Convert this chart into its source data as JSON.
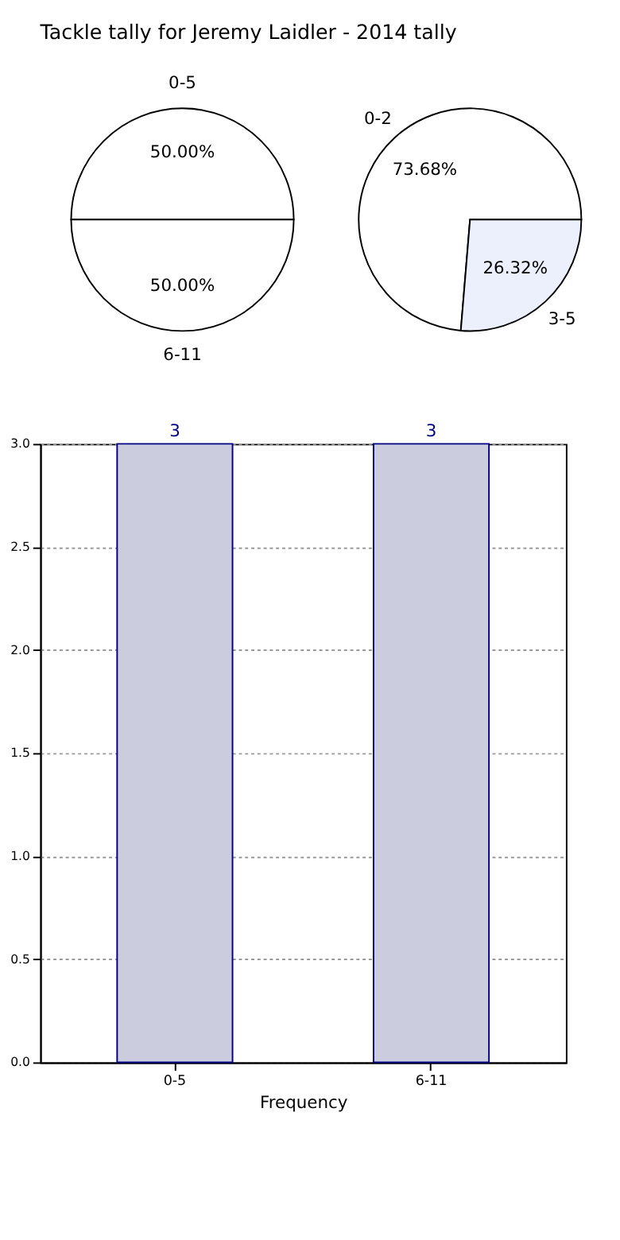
{
  "chart_data": [
    {
      "type": "pie",
      "title": "Tackle tally for Jeremy Laidler - 2014 tally",
      "categories": [
        "0-5",
        "6-11"
      ],
      "values": [
        50,
        50
      ],
      "colors": [
        "#ffffff",
        "#ffffff"
      ],
      "value_labels": [
        "50.00%",
        "50.00%"
      ]
    },
    {
      "type": "pie",
      "categories": [
        "0-2",
        "3-5"
      ],
      "values": [
        73.68,
        26.32
      ],
      "colors": [
        "#ffffff",
        "#ebf0fc"
      ],
      "value_labels": [
        "73.68%",
        "26.32%"
      ]
    },
    {
      "type": "bar",
      "categories": [
        "0-5",
        "6-11"
      ],
      "values": [
        3,
        3
      ],
      "color": "#ccccdf",
      "xlabel": "Frequency",
      "ylim": [
        0,
        3
      ],
      "yticks": [
        {
          "value": 0,
          "label": "0.0"
        },
        0.5,
        {
          "value": 1,
          "label": "1.0"
        },
        1.5,
        {
          "value": 2,
          "label": "2.0"
        },
        2.5,
        {
          "value": 3,
          "label": "3.0"
        }
      ],
      "grid": true,
      "data_labels": true
    }
  ]
}
